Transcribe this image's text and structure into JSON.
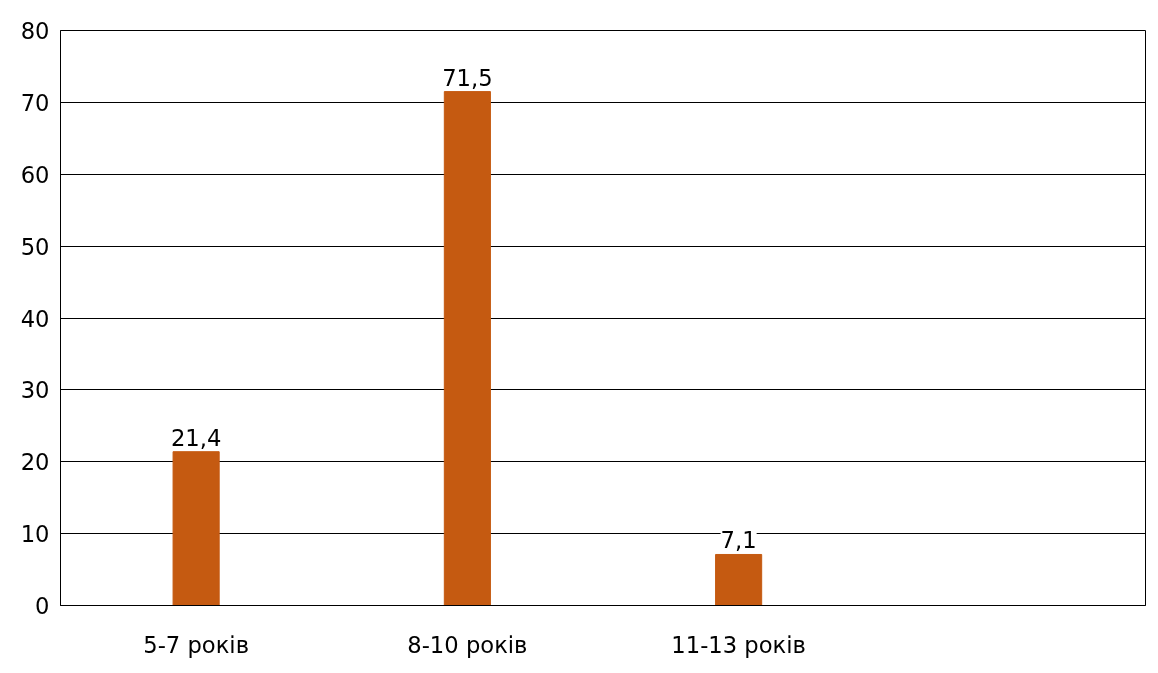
{
  "chart_data": {
    "type": "bar",
    "categories": [
      "5-7 років",
      "8-10 років",
      "11-13 років",
      null
    ],
    "values": [
      21.4,
      71.5,
      7.1,
      null
    ],
    "value_labels": [
      "21,4",
      "71,5",
      "7,1",
      null
    ],
    "color": "#c55a11",
    "ylim": [
      0,
      80
    ],
    "yticks": [
      0,
      10,
      20,
      30,
      40,
      50,
      60,
      70,
      80
    ],
    "grid": "y"
  }
}
